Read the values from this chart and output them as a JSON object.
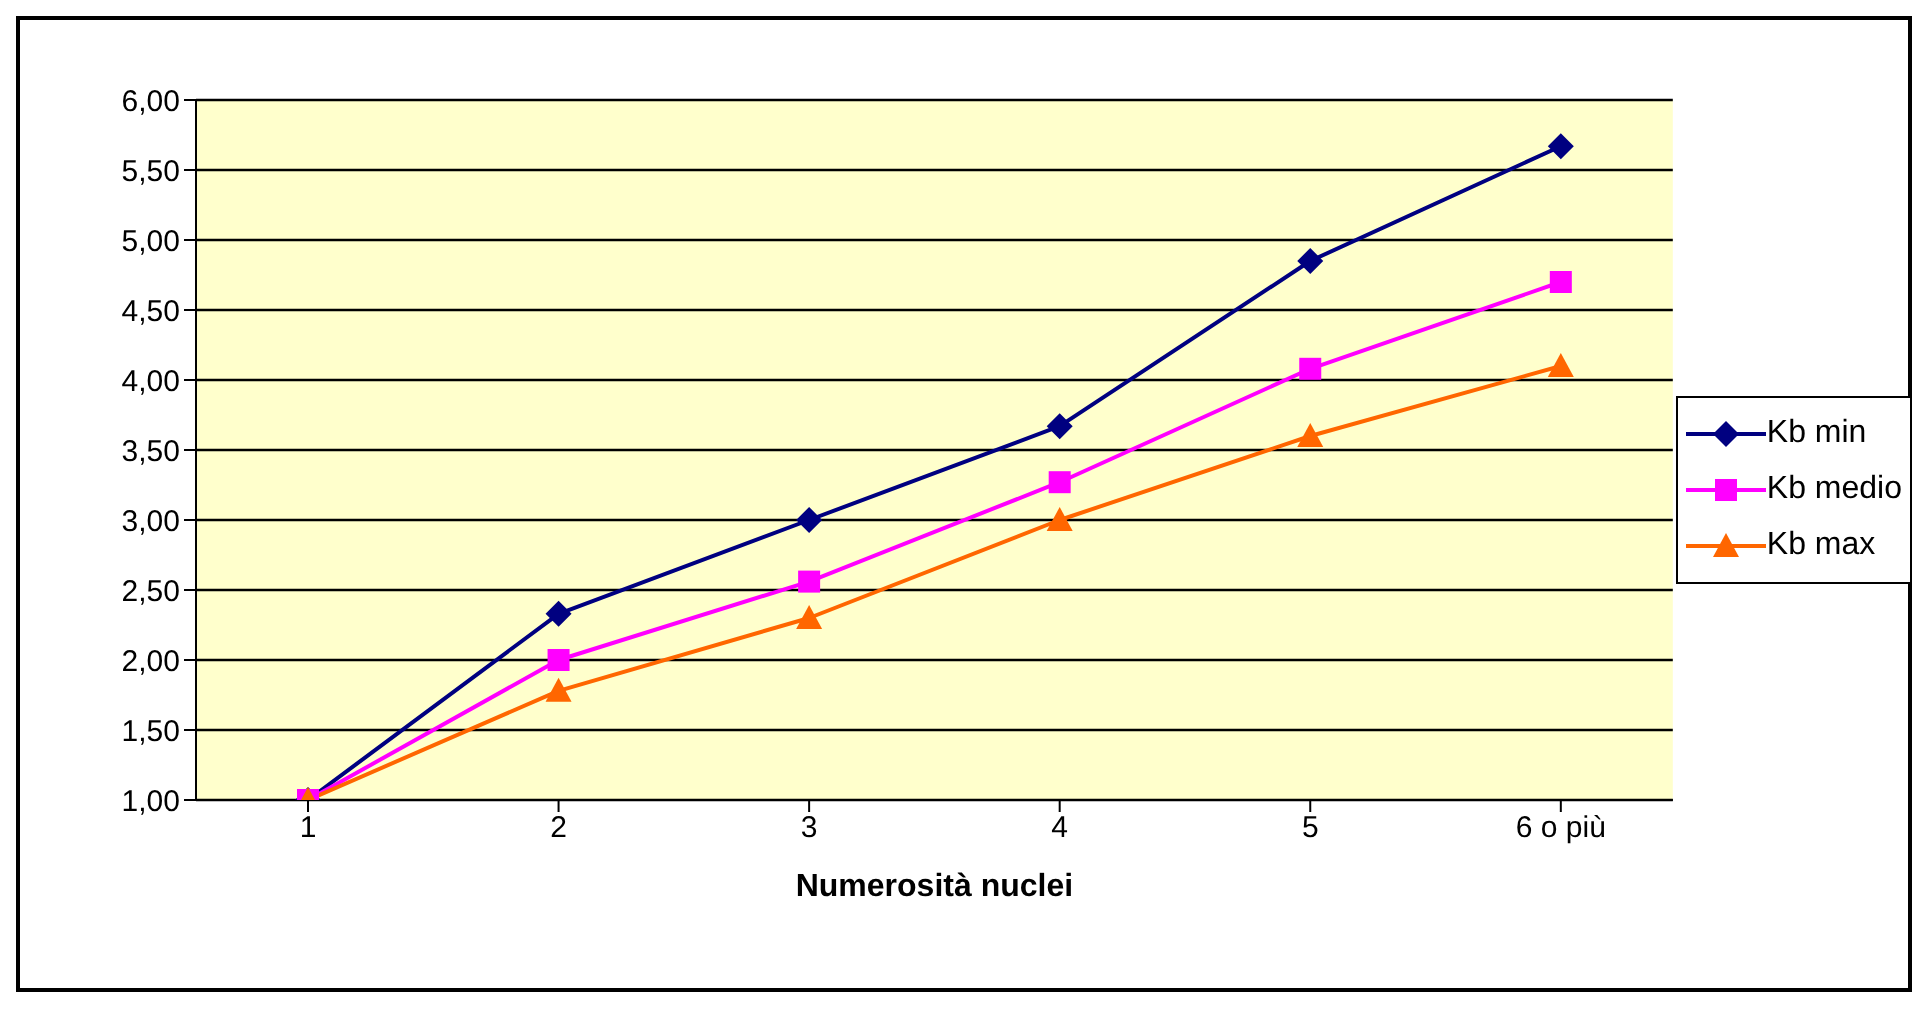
{
  "chart_data": {
    "type": "line",
    "xlabel": "Numerosità nuclei",
    "categories": [
      "1",
      "2",
      "3",
      "4",
      "5",
      "6 o più"
    ],
    "series": [
      {
        "name": "Kb min",
        "color": "#000080",
        "marker": "diamond",
        "values": [
          1.0,
          2.33,
          3.0,
          3.67,
          4.85,
          5.67
        ]
      },
      {
        "name": "Kb medio",
        "color": "#ff00ff",
        "marker": "square",
        "values": [
          1.0,
          2.0,
          2.56,
          3.27,
          4.08,
          4.7
        ]
      },
      {
        "name": "Kb max",
        "color": "#ff6600",
        "marker": "triangle",
        "values": [
          1.0,
          1.78,
          2.3,
          3.0,
          3.6,
          4.1
        ]
      }
    ],
    "ylim": [
      1,
      6
    ],
    "yticks": [
      {
        "value": 1,
        "label": "1,00"
      },
      {
        "value": 1.5,
        "label": "1,50"
      },
      {
        "value": 2,
        "label": "2,00"
      },
      {
        "value": 2.5,
        "label": "2,50"
      },
      {
        "value": 3,
        "label": "3,00"
      },
      {
        "value": 3.5,
        "label": "3,50"
      },
      {
        "value": 4,
        "label": "4,00"
      },
      {
        "value": 4.5,
        "label": "4,50"
      },
      {
        "value": 5,
        "label": "5,00"
      },
      {
        "value": 5.5,
        "label": "5,50"
      },
      {
        "value": 6,
        "label": "6,00"
      }
    ],
    "grid": "y",
    "legend": "right",
    "line_style": "solid"
  }
}
